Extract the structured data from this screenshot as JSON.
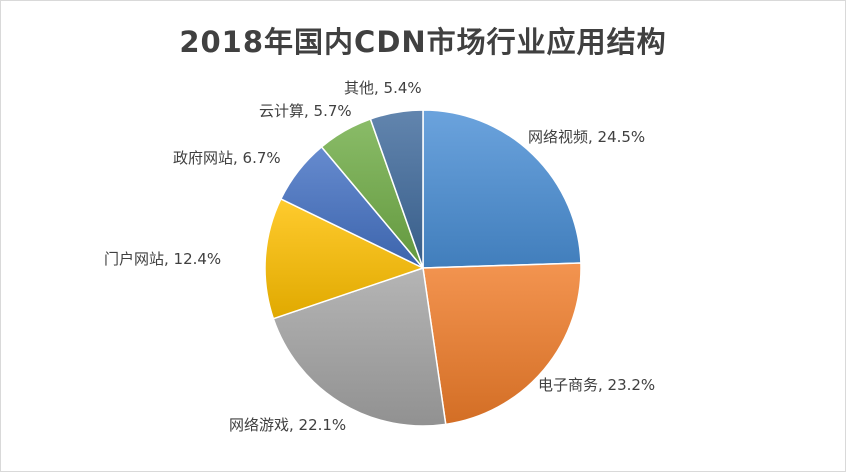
{
  "chart_data": {
    "type": "pie",
    "title": "2018年国内CDN市场行业应用结构",
    "legend": "none",
    "slices": [
      {
        "name": "网络视频",
        "value": 24.5,
        "label": "网络视频, 24.5%",
        "color": "#4a8fd6"
      },
      {
        "name": "电子商务",
        "value": 23.2,
        "label": "电子商务, 23.2%",
        "color": "#f07d2a"
      },
      {
        "name": "网络游戏",
        "value": 22.1,
        "label": "网络游戏, 22.1%",
        "color": "#a5a5a5"
      },
      {
        "name": "门户网站",
        "value": 12.4,
        "label": "门户网站, 12.4%",
        "color": "#ffc000"
      },
      {
        "name": "政府网站",
        "value": 6.7,
        "label": "政府网站, 6.7%",
        "color": "#4472c4"
      },
      {
        "name": "云计算",
        "value": 5.7,
        "label": "云计算, 5.7%",
        "color": "#70ad47"
      },
      {
        "name": "其他",
        "value": 5.4,
        "label": "其他, 5.4%",
        "color": "#3f6a9c"
      }
    ]
  }
}
